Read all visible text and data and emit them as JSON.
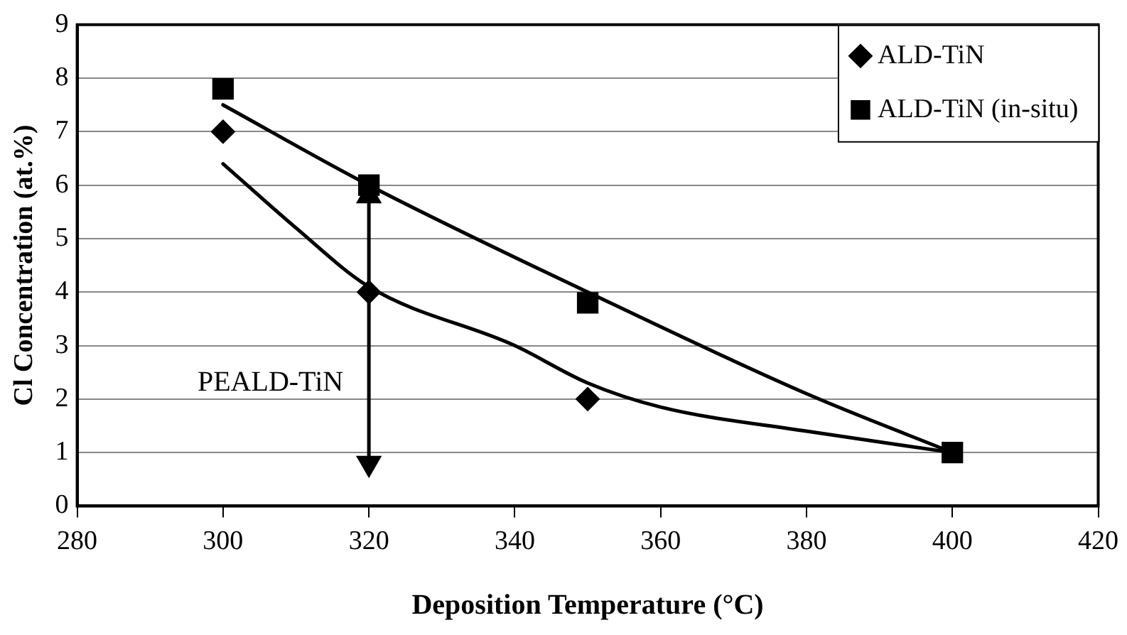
{
  "chart_data": {
    "type": "scatter",
    "xlabel": "Deposition Temperature (°C)",
    "ylabel": "Cl Concentration (at.%)",
    "xlim": [
      280,
      420
    ],
    "xticks": [
      280,
      300,
      320,
      340,
      360,
      380,
      400,
      420
    ],
    "ylim": [
      0,
      9
    ],
    "yticks": [
      0,
      1,
      2,
      3,
      4,
      5,
      6,
      7,
      8,
      9
    ],
    "grid": "y",
    "legend": "top right",
    "series": [
      {
        "name": "ALD-TiN",
        "color": "#000000",
        "marker": "diamond",
        "x": [
          300,
          320,
          350
        ],
        "values": [
          7,
          4,
          2
        ]
      },
      {
        "name": "ALD-TiN (in-situ)",
        "color": "#000000",
        "marker": "square",
        "x": [
          300,
          320,
          350,
          400
        ],
        "values": [
          7.8,
          6.0,
          3.8,
          1.0
        ]
      },
      {
        "type": "line",
        "color": "#000000",
        "marker": "none",
        "x": [
          300,
          310,
          320,
          340,
          350,
          360,
          380,
          400
        ],
        "values": [
          6.4,
          5.2,
          4.1,
          3.0,
          2.3,
          1.85,
          1.4,
          1.0
        ]
      },
      {
        "type": "line",
        "color": "#000000",
        "marker": "none",
        "x": [
          300,
          320,
          350,
          380,
          400
        ],
        "values": [
          7.5,
          6.0,
          4.0,
          2.1,
          1.0
        ]
      },
      {
        "name": "PEALD-TiN",
        "type": "line",
        "color": "#000000",
        "marker": "triangle",
        "x": [
          320,
          320
        ],
        "values": [
          5.8,
          0.8
        ]
      }
    ]
  }
}
